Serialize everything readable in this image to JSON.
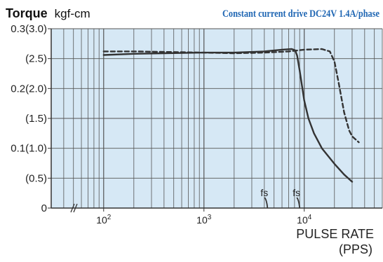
{
  "chart_data": {
    "type": "line",
    "title_left_bold": "Torque",
    "title_left_unit": "kgf-cm",
    "title_right": "Constant current drive  DC24V 1.4A/phase",
    "title_right_color": "#1f66b3",
    "xlabel_line1": "PULSE RATE",
    "xlabel_line2": "(PPS)",
    "x_scale": "log",
    "xlim": [
      30,
      60000
    ],
    "ylim": [
      0,
      0.3
    ],
    "plot_background": "#d6e8f5",
    "grid": true,
    "y_ticks": [
      {
        "value": 0,
        "label": "0"
      },
      {
        "value": 0.05,
        "label": "(0.5)"
      },
      {
        "value": 0.1,
        "label": "0.1(1.0)"
      },
      {
        "value": 0.15,
        "label": "(1.5)"
      },
      {
        "value": 0.2,
        "label": "0.2(2.0)"
      },
      {
        "value": 0.25,
        "label": "(2.5)"
      },
      {
        "value": 0.3,
        "label": "0.3(3.0)"
      }
    ],
    "x_ticks": [
      {
        "value": 100,
        "base": "10",
        "exp": "2"
      },
      {
        "value": 1000,
        "base": "10",
        "exp": "3"
      },
      {
        "value": 10000,
        "base": "10",
        "exp": "4"
      }
    ],
    "series": [
      {
        "style": "solid",
        "color": "#333333",
        "x": [
          100,
          200,
          400,
          1000,
          2000,
          4000,
          6000,
          7500,
          8100,
          8500,
          9000,
          10000,
          11000,
          12500,
          15000,
          20000,
          25000,
          30000
        ],
        "y": [
          0.256,
          0.258,
          0.259,
          0.26,
          0.26,
          0.262,
          0.265,
          0.266,
          0.264,
          0.255,
          0.23,
          0.18,
          0.15,
          0.125,
          0.1,
          0.074,
          0.056,
          0.044
        ]
      },
      {
        "style": "dashed",
        "color": "#333333",
        "x": [
          100,
          200,
          500,
          1000,
          2000,
          4000,
          7000,
          10000,
          15000,
          18000,
          20000,
          22000,
          25000,
          28000,
          30000,
          35000
        ],
        "y": [
          0.262,
          0.262,
          0.261,
          0.26,
          0.259,
          0.26,
          0.262,
          0.265,
          0.266,
          0.262,
          0.245,
          0.21,
          0.16,
          0.13,
          0.12,
          0.11
        ]
      }
    ],
    "fs_markers": [
      {
        "label": "fs",
        "x": 4300
      },
      {
        "label": "fs",
        "x": 9000
      }
    ]
  }
}
